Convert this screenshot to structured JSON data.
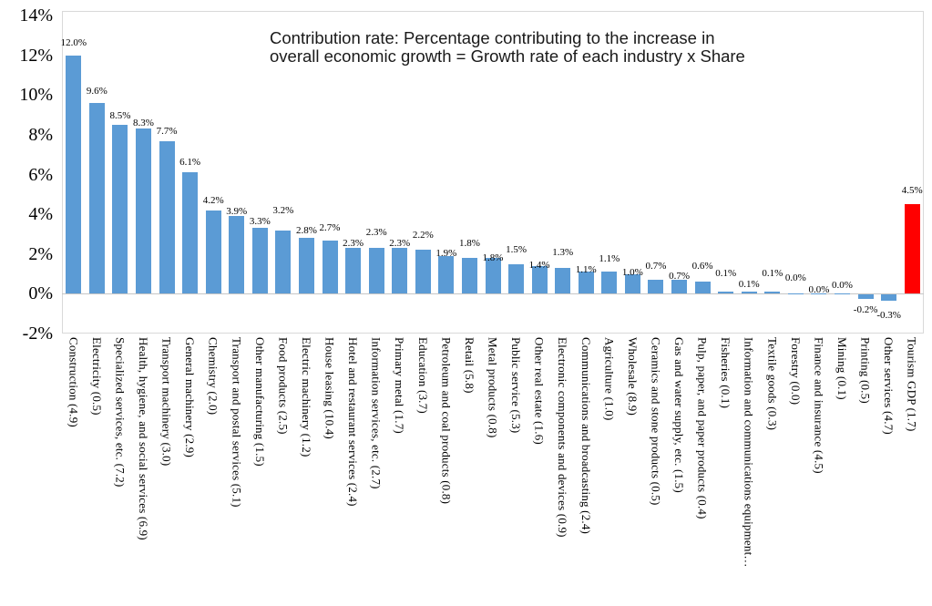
{
  "chart_data": {
    "type": "bar",
    "title": "Contribution rate: Percentage contributing to the increase in overall economic growth = Growth rate of each industry x Share",
    "title_lines": [
      "Contribution rate: Percentage contributing to the increase in",
      "overall economic growth = Growth rate of each industry x Share"
    ],
    "xlabel": "",
    "ylabel": "",
    "ylim": [
      -2,
      14
    ],
    "y_tick_labels": [
      "14%",
      "12%",
      "10%",
      "8%",
      "6%",
      "4%",
      "2%",
      "0%",
      "-2%"
    ],
    "y_tick_values": [
      14,
      12,
      10,
      8,
      6,
      4,
      2,
      0,
      -2
    ],
    "grid": false,
    "legend_position": "none",
    "categories": [
      "Construction (4.9)",
      "Electricity (0.5)",
      "Specialized services, etc. (7.2)",
      "Health, hygiene, and social services (6.9)",
      "Transport machinery (3.0)",
      "General machinery (2.9)",
      "Chemistry (2.0)",
      "Transport and postal services (5.1)",
      "Other manufacturing (1.5)",
      "Food products (2.5)",
      "Electric machinery (1.2)",
      "House leasing (10.4)",
      "Hotel and restaurant services (2.4)",
      "Information services, etc. (2.7)",
      "Primary metal (1.7)",
      "Education (3.7)",
      "Petroleum and coal products (0.8)",
      "Retail (5.8)",
      "Metal products (0.8)",
      "Public service (5.3)",
      "Other real estate (1.6)",
      "Electronic components and devices (0.9)",
      "Communications and broadcasting (2.4)",
      "Agriculture (1.0)",
      "Wholesale (8.9)",
      "Ceramics and stone products (0.5)",
      "Gas and water supply, etc. (1.5)",
      "Pulp, paper, and paper products (0.4)",
      "Fisheries (0.1)",
      "Information and communications equipment…",
      "Textile goods (0.3)",
      "Forestry (0.0)",
      "Finance and insurance (4.5)",
      "Mining (0.1)",
      "Printing (0.5)",
      "Other services (4.7)",
      "Tourism GDP (1.7)"
    ],
    "values": [
      12.0,
      9.6,
      8.5,
      8.3,
      7.7,
      6.1,
      4.2,
      3.9,
      3.3,
      3.2,
      2.8,
      2.7,
      2.3,
      2.3,
      2.3,
      2.2,
      1.9,
      1.8,
      1.8,
      1.5,
      1.4,
      1.3,
      1.1,
      1.1,
      1.0,
      0.7,
      0.7,
      0.6,
      0.1,
      0.1,
      0.1,
      0.0,
      0.0,
      0.0,
      -0.2,
      -0.3,
      4.5
    ],
    "value_labels": [
      "12.0%",
      "9.6%",
      "8.5%",
      "8.3%",
      "7.7%",
      "6.1%",
      "4.2%",
      "3.9%",
      "3.3%",
      "3.2%",
      "2.8%",
      "2.7%",
      "2.3%",
      "2.3%",
      "2.3%",
      "2.2%",
      "1.9%",
      "1.8%",
      "1.8%",
      "1.5%",
      "1.4%",
      "1.3%",
      "1.1%",
      "1.1%",
      "1.0%",
      "0.7%",
      "0.7%",
      "0.6%",
      "0.1%",
      "0.1%",
      "0.1%",
      "0.0%",
      "0.0%",
      "0.0%",
      "-0.2%",
      "-0.3%",
      "4.5%"
    ],
    "highlight_index": 36,
    "highlight_category": "Tourism GDP (1.7)",
    "colors": {
      "bar": "#5B9BD5",
      "highlight_bar": "#FF0000",
      "zero_axis_line": "#C6C6C6",
      "plot_border": "#D9D9D9",
      "text": "#000000"
    }
  }
}
